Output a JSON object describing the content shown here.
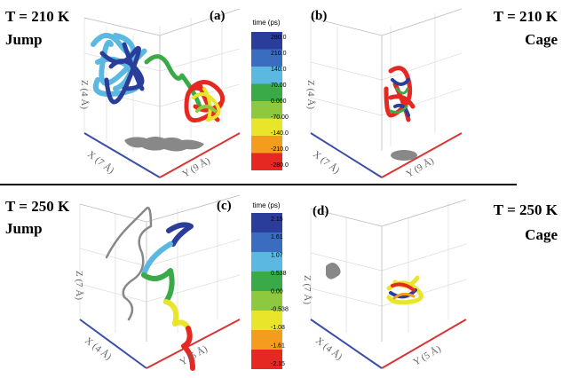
{
  "panels": [
    {
      "label": "(a)",
      "temperature": "T = 210 K",
      "mode": "Jump",
      "axes": {
        "z": "Z (4 Å)",
        "x": "X (7 Å)",
        "y": "Y (9 Å)"
      }
    },
    {
      "label": "(b)",
      "temperature": "T = 210 K",
      "mode": "Cage",
      "axes": {
        "z": "Z (4 Å)",
        "x": "X (7 Å)",
        "y": "Y (9 Å)"
      }
    },
    {
      "label": "(c)",
      "temperature": "T = 250 K",
      "mode": "Jump",
      "axes": {
        "z": "Z (7 Å)",
        "x": "X (4 Å)",
        "y": "Y (5 Å)"
      }
    },
    {
      "label": "(d)",
      "temperature": "T = 250 K",
      "mode": "Cage",
      "axes": {
        "z": "Z (7 Å)",
        "x": "X (4 Å)",
        "y": "Y (5 Å)"
      }
    }
  ],
  "colorbars": [
    {
      "title": "time (ps)",
      "ticks": [
        "280.0",
        "210.0",
        "140.0",
        "70.00",
        "0.000",
        "-70.00",
        "-140.0",
        "-210.0",
        "-280.0"
      ]
    },
    {
      "title": "time (ps)",
      "ticks": [
        "2.15",
        "1.61",
        "1.07",
        "0.538",
        "0.00",
        "-0.538",
        "-1.08",
        "-1.61",
        "-2.15"
      ]
    }
  ]
}
